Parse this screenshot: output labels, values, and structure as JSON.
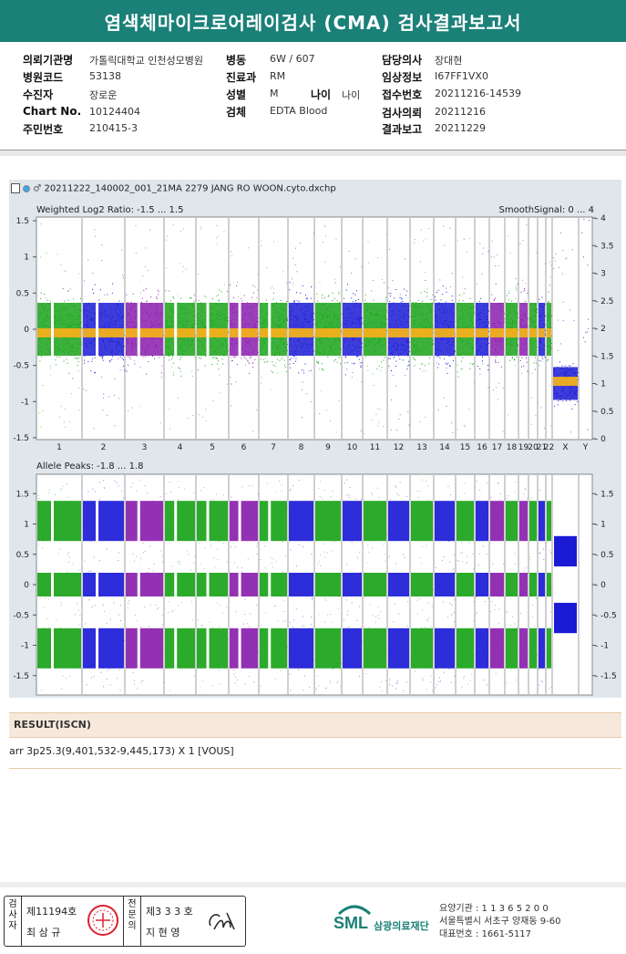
{
  "header": {
    "title": "염색체마이크로어레이검사 (CMA) 검사결과보고서"
  },
  "info": {
    "hospital_label": "의뢰기관명",
    "hospital_value": "가톨릭대학교 인천성모병원",
    "ward_label": "병동",
    "ward_value": "6W / 607",
    "doctor_label": "담당의사",
    "doctor_value": "장대현",
    "code_label": "병원코드",
    "code_value": "53138",
    "dept_label": "진료과",
    "dept_value": "RM",
    "clinical_label": "임상정보",
    "clinical_value": "I67FF1VX0",
    "patient_label": "수진자",
    "patient_value": "장로운",
    "sex_label": "성별",
    "sex_value": "M",
    "age_label": "나이",
    "age_value": "나이",
    "receipt_label": "접수번호",
    "receipt_value": "20211216-14539",
    "chart_label": "Chart No.",
    "chart_value": "10124404",
    "specimen_label": "검체",
    "specimen_value": "EDTA Blood",
    "request_label": "검사의뢰",
    "request_value": "20211216",
    "id_label": "주민번호",
    "id_value": "210415-3",
    "report_label": "결과보고",
    "report_value": "20211229"
  },
  "plot": {
    "filename": "20211222_140002_001_21MA 2279 JANG RO WOON.cyto.dxchp",
    "top_label": "Weighted Log2 Ratio: -1.5 ... 1.5",
    "top_right_label": "SmoothSignal: 0 ... 4",
    "bottom_label": "Allele Peaks: -1.8 ... 1.8",
    "left_ticks_top": [
      "1.5",
      "1",
      "0.5",
      "0",
      "-0.5",
      "-1",
      "-1.5"
    ],
    "right_ticks_top": [
      "4",
      "3.5",
      "3",
      "2.5",
      "2",
      "1.5",
      "1",
      "0.5",
      "0"
    ],
    "left_ticks_bottom": [
      "1.5",
      "1",
      "0.5",
      "0",
      "-0.5",
      "-1",
      "-1.5"
    ],
    "right_ticks_bottom": [
      "1.5",
      "1",
      "0.5",
      "0",
      "-0.5",
      "-1",
      "-1.5"
    ],
    "chromosomes": [
      "1",
      "2",
      "3",
      "4",
      "5",
      "6",
      "7",
      "8",
      "9",
      "10",
      "11",
      "12",
      "13",
      "14",
      "15",
      "16",
      "17",
      "18",
      "19",
      "20",
      "21",
      "22",
      "X",
      "Y"
    ],
    "colors": {
      "green": "#1aa31a",
      "blue": "#1b1bd6",
      "purple": "#8a1fae",
      "orange": "#f2b01a"
    }
  },
  "result": {
    "label": "RESULT(ISCN)",
    "text": "arr 3p25.3(9,401,532-9,445,173) X 1 [VOUS]"
  },
  "footer": {
    "side1": "검사자",
    "side2": "전문의",
    "tester_no": "제11194호",
    "tester_name": "최 삼 규",
    "doctor_no": "제3 3 3 호",
    "doctor_name": "지 현 영",
    "logo": "SML",
    "logo_name": "삼광의료재단",
    "org_code": "요양기관 : 1 1 3 6 5 2 0 0",
    "address": "서울특별시 서초구 양재동 9-60",
    "phone": "대표번호 : 1661-5117"
  }
}
